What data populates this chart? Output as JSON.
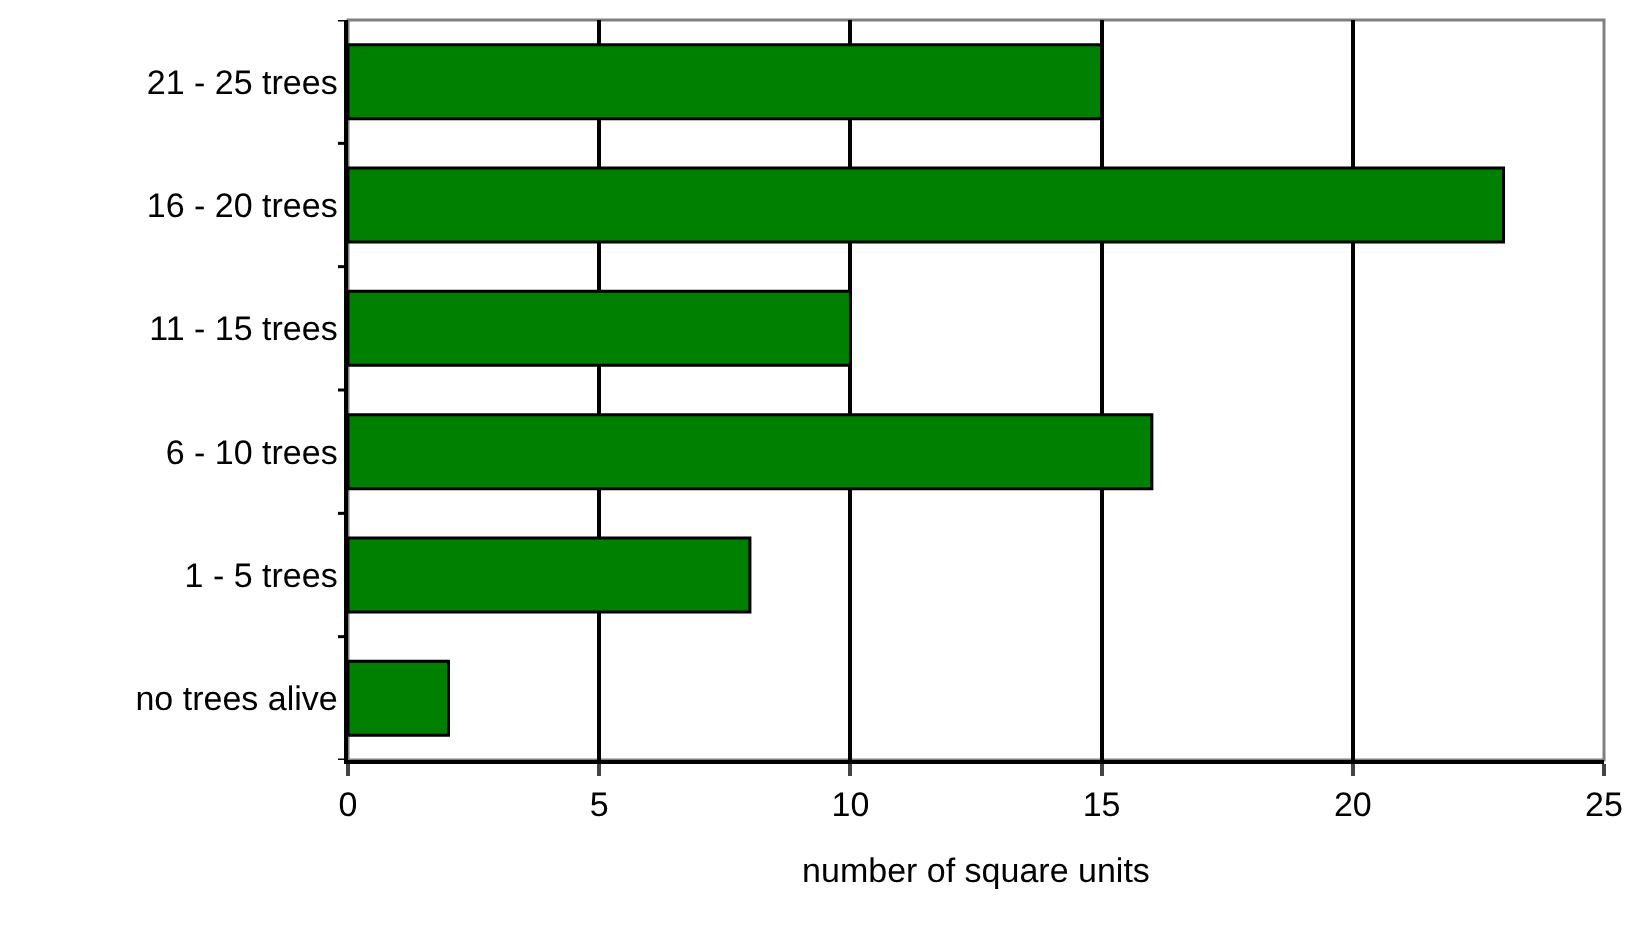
{
  "chart_data": {
    "type": "bar",
    "orientation": "horizontal",
    "xlabel": "number of square units",
    "categories": [
      "21 - 25 trees",
      "16 - 20 trees",
      "11 - 15 trees",
      "6 - 10 trees",
      "1 - 5 trees",
      "no trees alive"
    ],
    "values": [
      15,
      23,
      10,
      16,
      8,
      2
    ],
    "color": "#008000",
    "xlim": [
      0,
      25
    ],
    "xticks": [
      0,
      5,
      10,
      15,
      20,
      25
    ],
    "grid": "x"
  }
}
